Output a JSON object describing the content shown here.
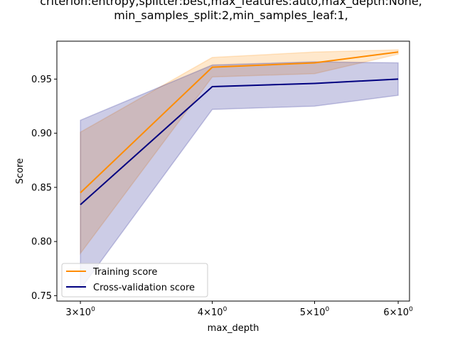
{
  "chart_data": {
    "type": "line",
    "title_lines": [
      "criterion:entropy,splitter:best,max_features:auto,max_depth:None,",
      "min_samples_split:2,min_samples_leaf:1,"
    ],
    "xlabel": "max_depth",
    "ylabel": "Score",
    "x_scale": "log",
    "x": [
      3,
      4,
      5,
      6
    ],
    "xlim": [
      2.85,
      6.15
    ],
    "ylim": [
      0.745,
      0.985
    ],
    "x_ticks": [
      {
        "value": 3,
        "base": "3",
        "exp": "0"
      },
      {
        "value": 4,
        "base": "4",
        "exp": "0"
      },
      {
        "value": 5,
        "base": "5",
        "exp": "0"
      },
      {
        "value": 6,
        "base": "6",
        "exp": "0"
      }
    ],
    "y_ticks": [
      0.75,
      0.8,
      0.85,
      0.9,
      0.95
    ],
    "y_tick_labels": [
      "0.75",
      "0.80",
      "0.85",
      "0.90",
      "0.95"
    ],
    "grid": false,
    "legend_position": "lower-left",
    "series": [
      {
        "name": "Training score",
        "color": "#ff8c00",
        "values": [
          0.845,
          0.961,
          0.965,
          0.975
        ],
        "upper": [
          0.901,
          0.97,
          0.975,
          0.977
        ],
        "lower": [
          0.789,
          0.952,
          0.955,
          0.973
        ]
      },
      {
        "name": "Cross-validation score",
        "color": "#000080",
        "values": [
          0.834,
          0.943,
          0.946,
          0.95
        ],
        "upper": [
          0.912,
          0.963,
          0.966,
          0.965
        ],
        "lower": [
          0.756,
          0.922,
          0.925,
          0.935
        ]
      }
    ]
  }
}
